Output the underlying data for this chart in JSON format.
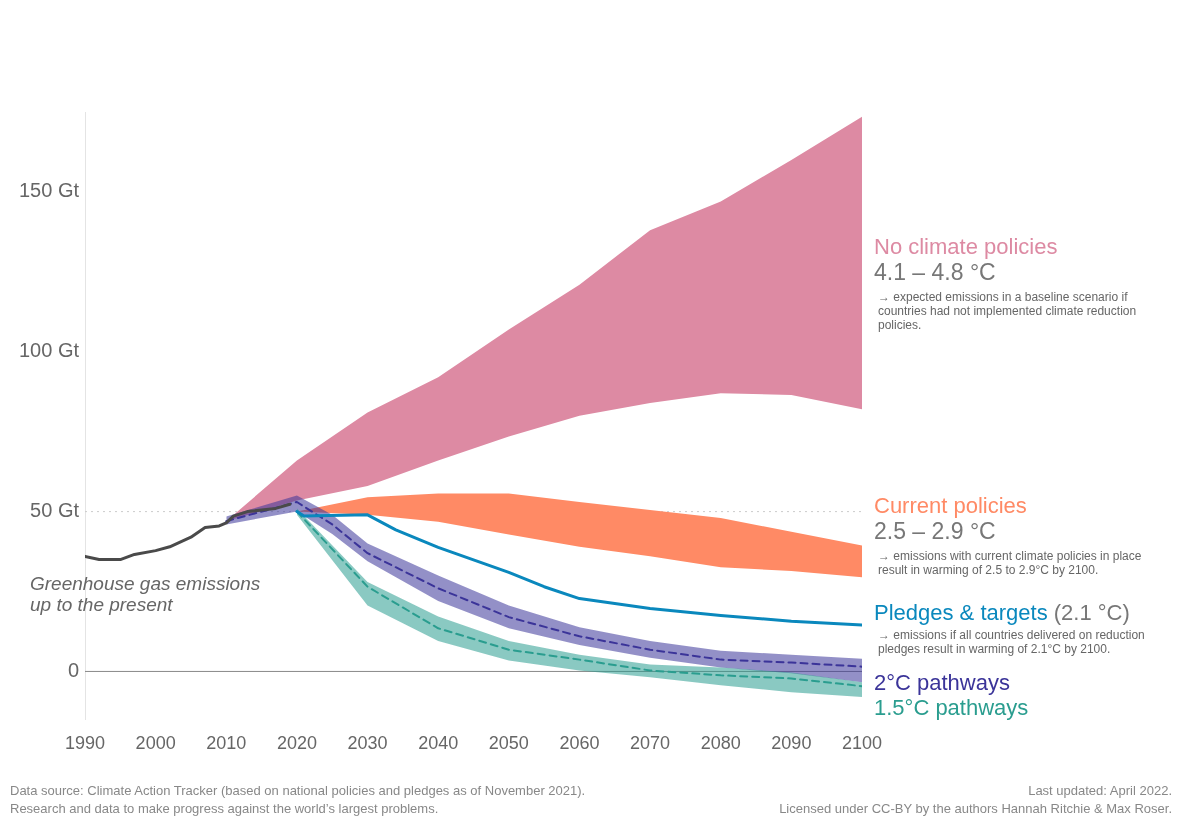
{
  "chart_data": {
    "type": "line",
    "xlim": [
      1990,
      2100
    ],
    "xticks": [
      1990,
      2000,
      2010,
      2020,
      2030,
      2040,
      2050,
      2060,
      2070,
      2080,
      2090,
      2100
    ],
    "ylim": [
      -15,
      175
    ],
    "yticks": [
      0,
      {
        "value": 50,
        "label": "50 Gt"
      },
      {
        "value": 100,
        "label": "100 Gt"
      },
      {
        "value": 150,
        "label": "150 Gt"
      }
    ],
    "grid": false,
    "legend": false,
    "marker": "none",
    "ref_lines": [
      {
        "axis": "y",
        "value": 50,
        "label": null,
        "color": "#cccccc",
        "line_style": "dotted"
      },
      {
        "axis": "y",
        "value": 0,
        "label": null,
        "color": "#888888",
        "line_style": "solid"
      }
    ],
    "series": [
      {
        "type": "line",
        "name": "Greenhouse gas emissions up to the present",
        "color": "#4a4a4a",
        "line_style": "solid",
        "x": [
          1990,
          1992,
          1995,
          1997,
          2000,
          2002,
          2005,
          2007,
          2009,
          2010,
          2011,
          2013,
          2015,
          2017,
          2019
        ],
        "values": [
          36,
          35,
          35,
          36.6,
          37.8,
          39,
          42,
          45,
          45.5,
          46.5,
          48.6,
          50,
          50.5,
          51,
          52.3
        ]
      },
      {
        "type": "line",
        "name": "No climate policies",
        "color": "#dd8aa3",
        "x": [
          2010,
          2020,
          2030,
          2040,
          2050,
          2060,
          2070,
          2080,
          2090,
          2100
        ],
        "values": [
          null,
          null,
          null,
          null,
          null,
          null,
          null,
          null,
          null,
          null
        ],
        "lower": [
          47,
          53.5,
          58,
          66,
          73.5,
          80,
          84,
          87,
          86.5,
          82
        ],
        "upper": [
          47,
          66,
          81,
          92,
          107,
          121,
          138,
          147,
          160,
          173.5
        ]
      },
      {
        "type": "line",
        "name": "Current policies",
        "color": "#ff8a65",
        "x": [
          2020,
          2030,
          2040,
          2050,
          2060,
          2070,
          2080,
          2090,
          2100
        ],
        "values": [
          null,
          null,
          null,
          null,
          null,
          null,
          null,
          null,
          null
        ],
        "lower": [
          50,
          49,
          46.8,
          42.8,
          39,
          36,
          32.6,
          31.4,
          29.5
        ],
        "upper": [
          50,
          54.5,
          55.7,
          55.7,
          53,
          50.5,
          48,
          43.7,
          39.4
        ]
      },
      {
        "type": "line",
        "name": "Pledges & targets",
        "color": "#0a88bd",
        "line_style": "solid",
        "x": [
          2020,
          2021,
          2030,
          2034,
          2040,
          2050,
          2055,
          2060,
          2070,
          2080,
          2090,
          2100
        ],
        "values": [
          50,
          48.6,
          49,
          44.3,
          38.8,
          31,
          26.5,
          22.8,
          19.7,
          17.5,
          15.7,
          14.5
        ]
      },
      {
        "type": "line",
        "name": "2°C pathways",
        "color": "#3b3499",
        "line_style": "dashed",
        "x": [
          2010,
          2020,
          2025,
          2030,
          2040,
          2050,
          2060,
          2070,
          2080,
          2090,
          2100
        ],
        "values": [
          47,
          53,
          46,
          37,
          26,
          17,
          11,
          6.8,
          3.7,
          2.8,
          1.5
        ],
        "lower": [
          46,
          50,
          43,
          34.5,
          22,
          13.5,
          8.3,
          4.3,
          1.2,
          -0.6,
          -3.4
        ],
        "upper": [
          48.5,
          55,
          49,
          40,
          30,
          20.6,
          13.8,
          9.5,
          6.5,
          5.2,
          4
        ]
      },
      {
        "type": "line",
        "name": "1.5°C pathways",
        "color": "#2a9d8f",
        "line_style": "dashed",
        "x": [
          2020,
          2030,
          2040,
          2050,
          2060,
          2070,
          2080,
          2090,
          2100
        ],
        "values": [
          50,
          26.5,
          13.5,
          6.8,
          3.7,
          0.3,
          -1.2,
          -2.2,
          -4.6
        ],
        "lower": [
          49,
          20.6,
          9.5,
          3.4,
          0.3,
          -1.8,
          -4.3,
          -6.5,
          -8
        ],
        "upper": [
          51,
          28,
          17.2,
          9.5,
          5.2,
          2.2,
          1.2,
          -0.3,
          -3.4
        ]
      }
    ],
    "annotations": [
      "4.1 – 4.8 °C",
      "→ expected emissions in a baseline scenario if countries had not implemented climate reduction policies.",
      "2.5 – 2.9 °C",
      "→ emissions with current climate policies in place result in warming of 2.5 to 2.9°C by 2100.",
      "(2.1 °C)",
      "→ emissions if all countries delivered on reduction pledges result in warming of 2.1°C by 2100.",
      "Data source: Climate Action Tracker (based on national policies and pledges as of November 2021).",
      "Research and data to make progress against the world’s largest problems.",
      "Last updated: April 2022.",
      "Licensed under CC-BY by the authors Hannah Ritchie & Max Roser."
    ]
  }
}
